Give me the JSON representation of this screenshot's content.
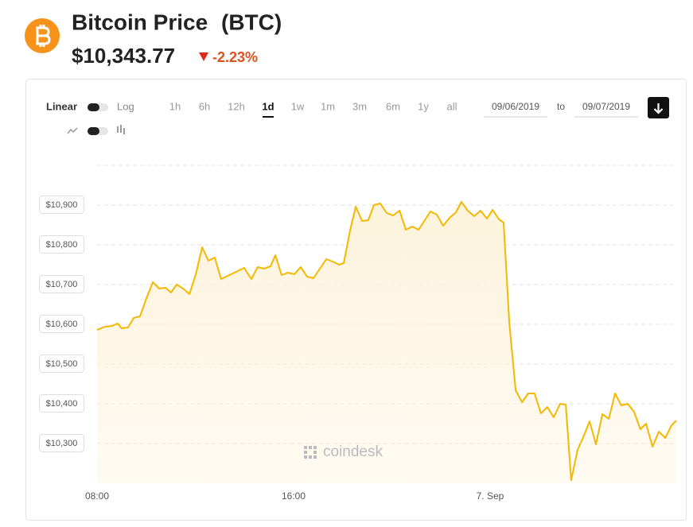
{
  "header": {
    "title": "Bitcoin Price",
    "symbol": "(BTC)",
    "price": "$10,343.77",
    "change": "-2.23%"
  },
  "controls": {
    "scale_options": [
      "Linear",
      "Log"
    ],
    "ranges": [
      "1h",
      "6h",
      "12h",
      "1d",
      "1w",
      "1m",
      "3m",
      "6m",
      "1y",
      "all"
    ],
    "active_range": "1d",
    "date_from": "09/06/2019",
    "date_separator": "to",
    "date_to": "09/07/2019"
  },
  "watermark": "coindesk",
  "chart_data": {
    "type": "line",
    "color": "#f5b800",
    "area_color": "#fdf3dc",
    "x": [
      8.0,
      8.32,
      8.62,
      8.84,
      9.0,
      9.26,
      9.49,
      9.75,
      10.01,
      10.27,
      10.53,
      10.79,
      11.01,
      11.24,
      11.5,
      11.76,
      12.02,
      12.28,
      12.53,
      12.79,
      13.05,
      13.99,
      14.28,
      14.54,
      14.8,
      15.06,
      15.26,
      15.51,
      15.77,
      16.03,
      16.29,
      16.55,
      16.81,
      17.07,
      17.33,
      17.59,
      17.85,
      18.04,
      18.3,
      18.53,
      18.79,
      19.04,
      19.27,
      19.53,
      19.79,
      20.05,
      20.31,
      20.57,
      20.83,
      21.09,
      21.34,
      21.57,
      21.83,
      22.09,
      22.35,
      22.61,
      22.83,
      23.09,
      23.35,
      23.61,
      23.87,
      24.1,
      24.36,
      24.55,
      24.78,
      25.04,
      25.3,
      25.55,
      25.81,
      26.07,
      26.33,
      26.59,
      26.85,
      27.08,
      27.3,
      27.56,
      27.82,
      28.05,
      28.31,
      28.57,
      28.83,
      29.09,
      29.34,
      29.6,
      29.86,
      30.12,
      30.35,
      30.61,
      30.87,
      31.13,
      31.39,
      31.58
    ],
    "values": [
      10586,
      10594,
      10596,
      10602,
      10590,
      10592,
      10616,
      10620,
      10666,
      10706,
      10690,
      10692,
      10680,
      10700,
      10690,
      10676,
      10726,
      10794,
      10760,
      10768,
      10714,
      10742,
      10714,
      10744,
      10740,
      10746,
      10774,
      10724,
      10730,
      10726,
      10744,
      10720,
      10716,
      10740,
      10764,
      10758,
      10750,
      10754,
      10836,
      10896,
      10860,
      10862,
      10900,
      10904,
      10880,
      10874,
      10886,
      10838,
      10846,
      10838,
      10862,
      10884,
      10876,
      10848,
      10868,
      10882,
      10908,
      10886,
      10872,
      10886,
      10866,
      10888,
      10864,
      10856,
      10604,
      10434,
      10404,
      10426,
      10426,
      10376,
      10392,
      10366,
      10400,
      10398,
      10208,
      10284,
      10320,
      10356,
      10298,
      10374,
      10362,
      10426,
      10396,
      10400,
      10380,
      10336,
      10350,
      10292,
      10330,
      10314,
      10346,
      10358
    ],
    "xlim": [
      8,
      31.58
    ],
    "xticks": [
      {
        "value": 8,
        "label": "08:00"
      },
      {
        "value": 16,
        "label": "16:00"
      },
      {
        "value": 24,
        "label": "7. Sep"
      }
    ],
    "ylim": [
      10200,
      11000
    ],
    "yticks": [
      {
        "value": 10300,
        "label": "$10,300"
      },
      {
        "value": 10400,
        "label": "$10,400"
      },
      {
        "value": 10500,
        "label": "$10,500"
      },
      {
        "value": 10600,
        "label": "$10,600"
      },
      {
        "value": 10700,
        "label": "$10,700"
      },
      {
        "value": 10800,
        "label": "$10,800"
      },
      {
        "value": 10900,
        "label": "$10,900"
      }
    ],
    "grid": true
  }
}
